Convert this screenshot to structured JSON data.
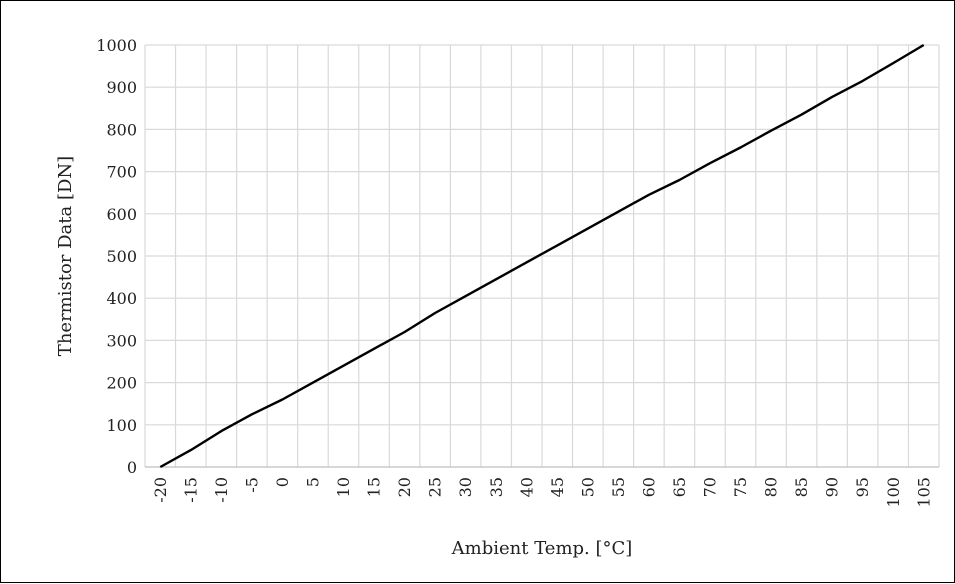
{
  "chart_data": {
    "type": "line",
    "title": "",
    "xlabel": "Ambient Temp. [°C]",
    "ylabel": "Thermistor Data [DN]",
    "x_ticks": [
      "-20",
      "-15",
      "-10",
      "-5",
      "0",
      "5",
      "10",
      "15",
      "20",
      "25",
      "30",
      "35",
      "40",
      "45",
      "50",
      "55",
      "60",
      "65",
      "70",
      "75",
      "80",
      "85",
      "90",
      "95",
      "100",
      "105"
    ],
    "y_ticks": [
      "0",
      "100",
      "200",
      "300",
      "400",
      "500",
      "600",
      "700",
      "800",
      "900",
      "1000"
    ],
    "xlim": [
      -20,
      105
    ],
    "ylim": [
      0,
      1000
    ],
    "grid": true,
    "line_color": "#000000",
    "grid_color": "#d9d9d9",
    "series": [
      {
        "x": [
          -20,
          -15,
          -10,
          -5,
          0,
          5,
          10,
          15,
          20,
          25,
          30,
          35,
          40,
          45,
          50,
          55,
          60,
          65,
          70,
          75,
          80,
          85,
          90,
          95,
          100,
          105
        ],
        "y": [
          0,
          40,
          85,
          125,
          160,
          200,
          240,
          280,
          320,
          365,
          405,
          445,
          485,
          525,
          565,
          605,
          645,
          680,
          720,
          757,
          797,
          835,
          877,
          915,
          957,
          1000
        ]
      }
    ]
  }
}
